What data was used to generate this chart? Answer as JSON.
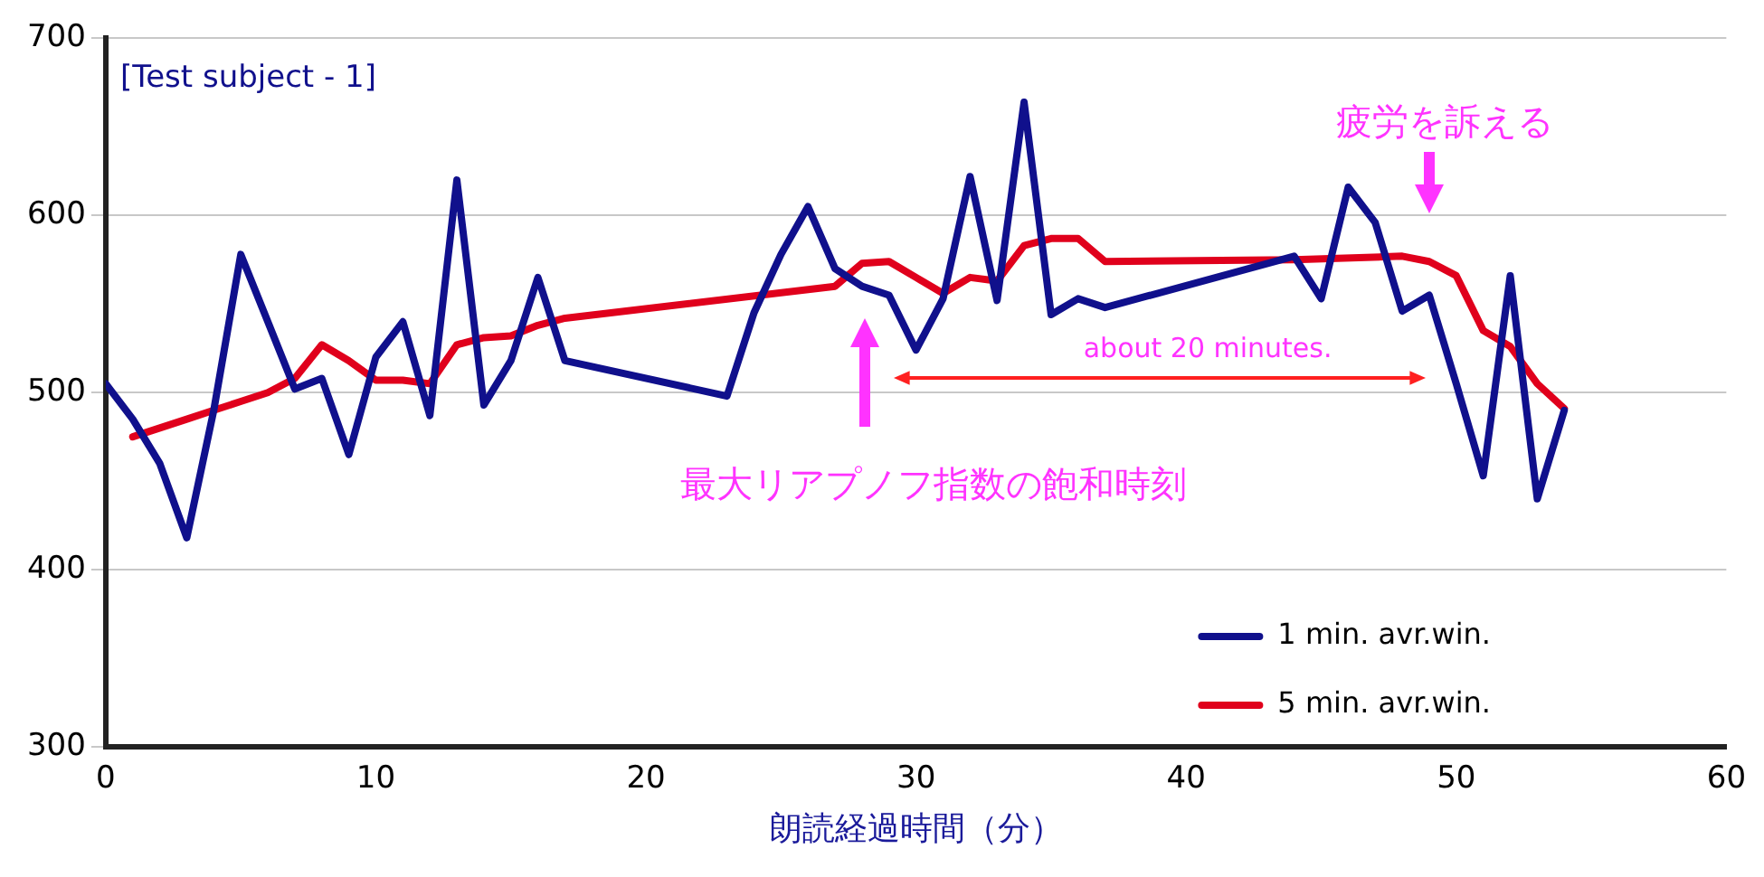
{
  "chart_data": {
    "type": "line",
    "title": "[Test subject - 1]",
    "xlabel": "朗読経過時間（分）",
    "xlim": [
      0,
      60
    ],
    "xticks": [
      0,
      10,
      20,
      30,
      40,
      50,
      60
    ],
    "ylim": [
      300,
      700
    ],
    "yticks": [
      300,
      400,
      500,
      600,
      700
    ],
    "grid": "y",
    "legend": "bottom right",
    "marker": "none",
    "line_style": "solid",
    "series": [
      {
        "name": "1 min. avr.win.",
        "color": "#10108c",
        "x": [
          0,
          1,
          2,
          3,
          4,
          5,
          6,
          7,
          8,
          9,
          10,
          11,
          12,
          13,
          14,
          15,
          16,
          17,
          23,
          24,
          25,
          26,
          27,
          28,
          29,
          30,
          31,
          32,
          33,
          34,
          35,
          36,
          37,
          44,
          45,
          46,
          47,
          48,
          49,
          50,
          51,
          52,
          53,
          54
        ],
        "values": [
          505,
          485,
          460,
          418,
          490,
          578,
          540,
          502,
          508,
          465,
          520,
          540,
          487,
          620,
          493,
          518,
          565,
          518,
          498,
          545,
          578,
          605,
          570,
          560,
          555,
          524,
          553,
          622,
          552,
          664,
          544,
          553,
          548,
          577,
          553,
          616,
          596,
          546,
          555,
          505,
          453,
          566,
          440,
          490
        ]
      },
      {
        "name": "5 min. avr.win.",
        "color": "#e0001c",
        "x": [
          1,
          2,
          3,
          4,
          5,
          6,
          7,
          8,
          9,
          10,
          11,
          12,
          13,
          14,
          15,
          16,
          17,
          27,
          28,
          29,
          30,
          31,
          32,
          33,
          34,
          35,
          36,
          37,
          44,
          48,
          49,
          50,
          51,
          52,
          53,
          54
        ],
        "values": [
          475,
          480,
          485,
          490,
          495,
          500,
          508,
          527,
          518,
          507,
          507,
          505,
          527,
          531,
          532,
          538,
          542,
          560,
          573,
          574,
          565,
          556,
          565,
          563,
          583,
          587,
          587,
          574,
          575,
          577,
          574,
          566,
          535,
          526,
          505,
          491
        ]
      }
    ],
    "annotations": [
      "疲労を訴える",
      "最大リアプノフ指数の飽和時刻",
      "about 20 minutes."
    ]
  }
}
